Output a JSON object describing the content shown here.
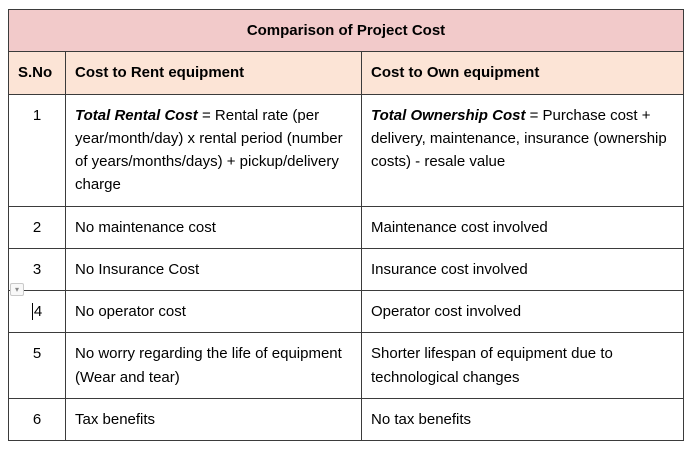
{
  "table": {
    "title": "Comparison of Project Cost",
    "columns": [
      "S.No",
      "Cost to Rent equipment",
      "Cost to Own equipment"
    ],
    "rows": [
      {
        "sno": "1",
        "rent_lead": "Total Rental Cost",
        "rent_text": " = Rental rate (per year/month/day) x rental period (number of years/months/days) + pickup/delivery charge",
        "own_lead": "Total Ownership Cost",
        "own_text": " = Purchase cost + delivery, maintenance, insurance (ownership costs) - resale value"
      },
      {
        "sno": "2",
        "rent": "No maintenance cost",
        "own": "Maintenance cost involved"
      },
      {
        "sno": "3",
        "rent": "No Insurance Cost",
        "own": "Insurance cost involved"
      },
      {
        "sno": "4",
        "rent": "No operator cost",
        "own": "Operator cost involved"
      },
      {
        "sno": "5",
        "rent": "No worry regarding the life of equipment (Wear and tear)",
        "own": "Shorter lifespan of equipment due to technological changes"
      },
      {
        "sno": "6",
        "rent": "Tax benefits",
        "own": "No tax benefits"
      }
    ]
  },
  "artifacts": {
    "paste_options_glyph": "▾"
  },
  "colors": {
    "title_bg": "#f2caca",
    "header_bg": "#fce4d6",
    "border": "#3b3b3b"
  }
}
